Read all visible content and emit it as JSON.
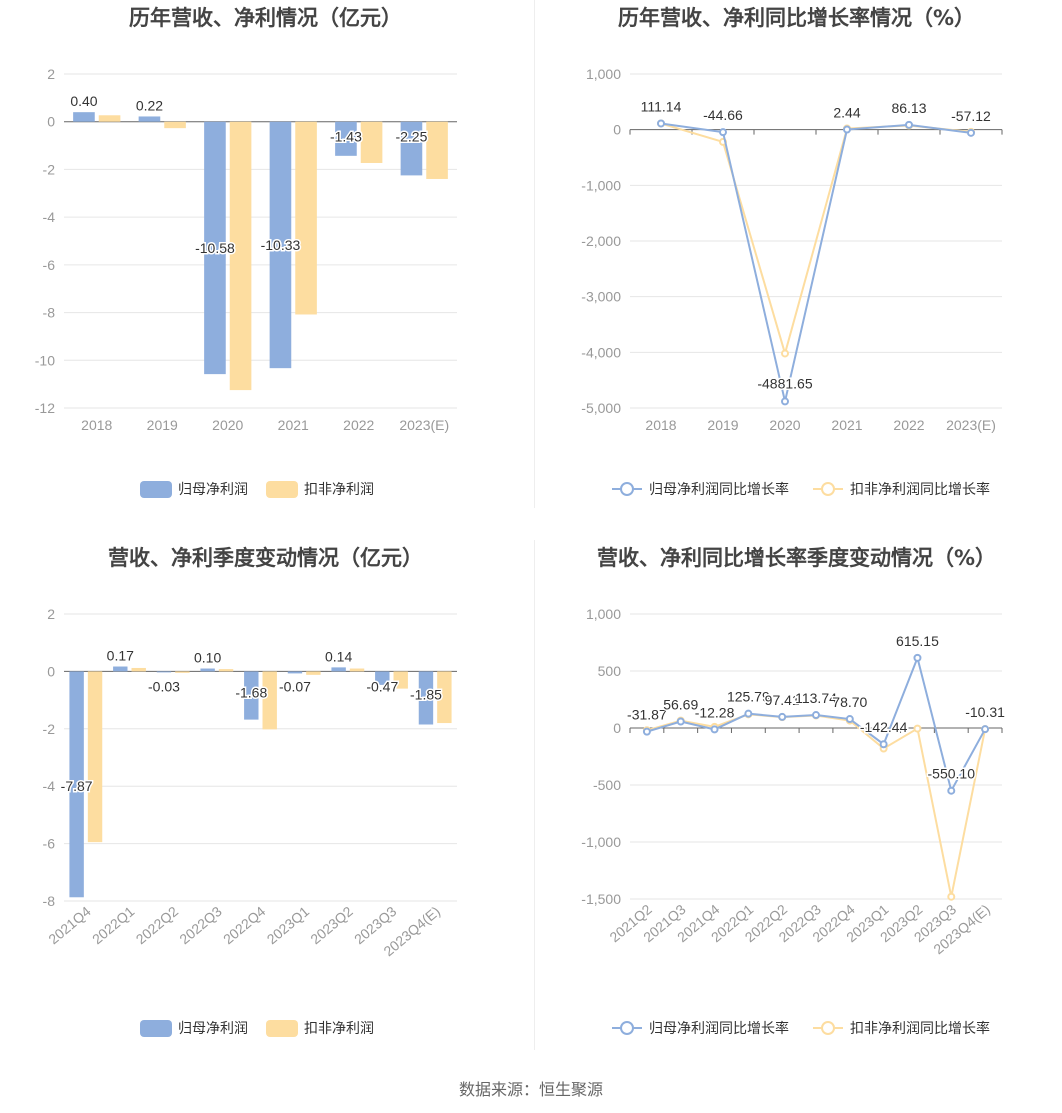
{
  "footer": {
    "source": "数据来源：恒生聚源"
  },
  "chart_data": [
    {
      "type": "bar",
      "title": "历年营收、净利情况（亿元）",
      "categories": [
        "2018",
        "2019",
        "2020",
        "2021",
        "2022",
        "2023(E)"
      ],
      "ylim": [
        -12,
        2
      ],
      "yticks": [
        2,
        0,
        -2,
        -4,
        -6,
        -8,
        -10,
        -12
      ],
      "ytick_labels": [
        "2",
        "0",
        "-2",
        "-4",
        "-6",
        "-8",
        "-10",
        "-12"
      ],
      "series": [
        {
          "name": "归母净利润",
          "color": "#8eaedd",
          "values": [
            0.4,
            0.22,
            -10.58,
            -10.33,
            -1.43,
            -2.25
          ],
          "labels": [
            "0.40",
            "0.22",
            "-10.58",
            "-10.33",
            "-1.43",
            "-2.25"
          ]
        },
        {
          "name": "扣非净利润",
          "color": "#fddda0",
          "values": [
            0.27,
            -0.27,
            -11.25,
            -8.08,
            -1.73,
            -2.4
          ]
        }
      ],
      "grid": true,
      "legend": "bottom"
    },
    {
      "type": "line",
      "title": "历年营收、净利同比增长率情况（%）",
      "categories": [
        "2018",
        "2019",
        "2020",
        "2021",
        "2022",
        "2023(E)"
      ],
      "ylim": [
        -5000,
        1000
      ],
      "yticks": [
        1000,
        0,
        -1000,
        -2000,
        -3000,
        -4000,
        -5000
      ],
      "ytick_labels": [
        "1,000",
        "0",
        "-1,000",
        "-2,000",
        "-3,000",
        "-4,000",
        "-5,000"
      ],
      "series": [
        {
          "name": "归母净利润同比增长率",
          "color": "#8eaedd",
          "values": [
            111.14,
            -44.66,
            -4881.65,
            2.44,
            86.13,
            -57.12
          ],
          "labels": [
            "111.14",
            "-44.66",
            "-4881.65",
            "2.44",
            "86.13",
            "-57.12"
          ]
        },
        {
          "name": "扣非净利润同比增长率",
          "color": "#fddda0",
          "values": [
            111,
            -220,
            -4020,
            20,
            75,
            -40
          ]
        }
      ],
      "grid": true,
      "legend": "bottom"
    },
    {
      "type": "bar",
      "title": "营收、净利季度变动情况（亿元）",
      "categories": [
        "2021Q4",
        "2022Q1",
        "2022Q2",
        "2022Q3",
        "2022Q4",
        "2023Q1",
        "2023Q2",
        "2023Q3",
        "2023Q4(E)"
      ],
      "ylim": [
        -8,
        2
      ],
      "yticks": [
        2,
        0,
        -2,
        -4,
        -6,
        -8
      ],
      "ytick_labels": [
        "2",
        "0",
        "-2",
        "-4",
        "-6",
        "-8"
      ],
      "series": [
        {
          "name": "归母净利润",
          "color": "#8eaedd",
          "values": [
            -7.87,
            0.17,
            -0.03,
            0.1,
            -1.68,
            -0.07,
            0.14,
            -0.47,
            -1.85
          ],
          "labels": [
            "-7.87",
            "0.17",
            "-0.03",
            "0.10",
            "-1.68",
            "-0.07",
            "0.14",
            "-0.47",
            "-1.85"
          ]
        },
        {
          "name": "扣非净利润",
          "color": "#fddda0",
          "values": [
            -5.95,
            0.12,
            -0.05,
            0.08,
            -2.02,
            -0.12,
            0.1,
            -0.6,
            -1.8
          ]
        }
      ],
      "grid": true,
      "legend": "bottom"
    },
    {
      "type": "line",
      "title": "营收、净利同比增长率季度变动情况（%）",
      "categories": [
        "2021Q2",
        "2021Q3",
        "2021Q4",
        "2022Q1",
        "2022Q2",
        "2022Q3",
        "2022Q4",
        "2023Q1",
        "2023Q2",
        "2023Q3",
        "2023Q4(E)"
      ],
      "ylim": [
        -1500,
        1000
      ],
      "yticks": [
        1000,
        500,
        0,
        -500,
        -1000,
        -1500
      ],
      "ytick_labels": [
        "1,000",
        "500",
        "0",
        "-500",
        "-1,000",
        "-1,500"
      ],
      "series": [
        {
          "name": "归母净利润同比增长率",
          "color": "#8eaedd",
          "values": [
            -31.87,
            56.69,
            -12.28,
            125.79,
            97.41,
            113.74,
            78.7,
            -142.44,
            615.15,
            -550.1,
            -10.31
          ],
          "labels": [
            "-31.87",
            "56.69",
            "-12.28",
            "125.79",
            "97.41",
            "113.74",
            "78.70",
            "-142.44",
            "615.15",
            "-550.10",
            "-10.31"
          ]
        },
        {
          "name": "扣非净利润同比增长率",
          "color": "#fddda0",
          "values": [
            -20,
            65,
            10,
            120,
            95,
            110,
            65,
            -180,
            -5,
            -1480,
            -10
          ]
        }
      ],
      "grid": true,
      "legend": "bottom"
    }
  ]
}
